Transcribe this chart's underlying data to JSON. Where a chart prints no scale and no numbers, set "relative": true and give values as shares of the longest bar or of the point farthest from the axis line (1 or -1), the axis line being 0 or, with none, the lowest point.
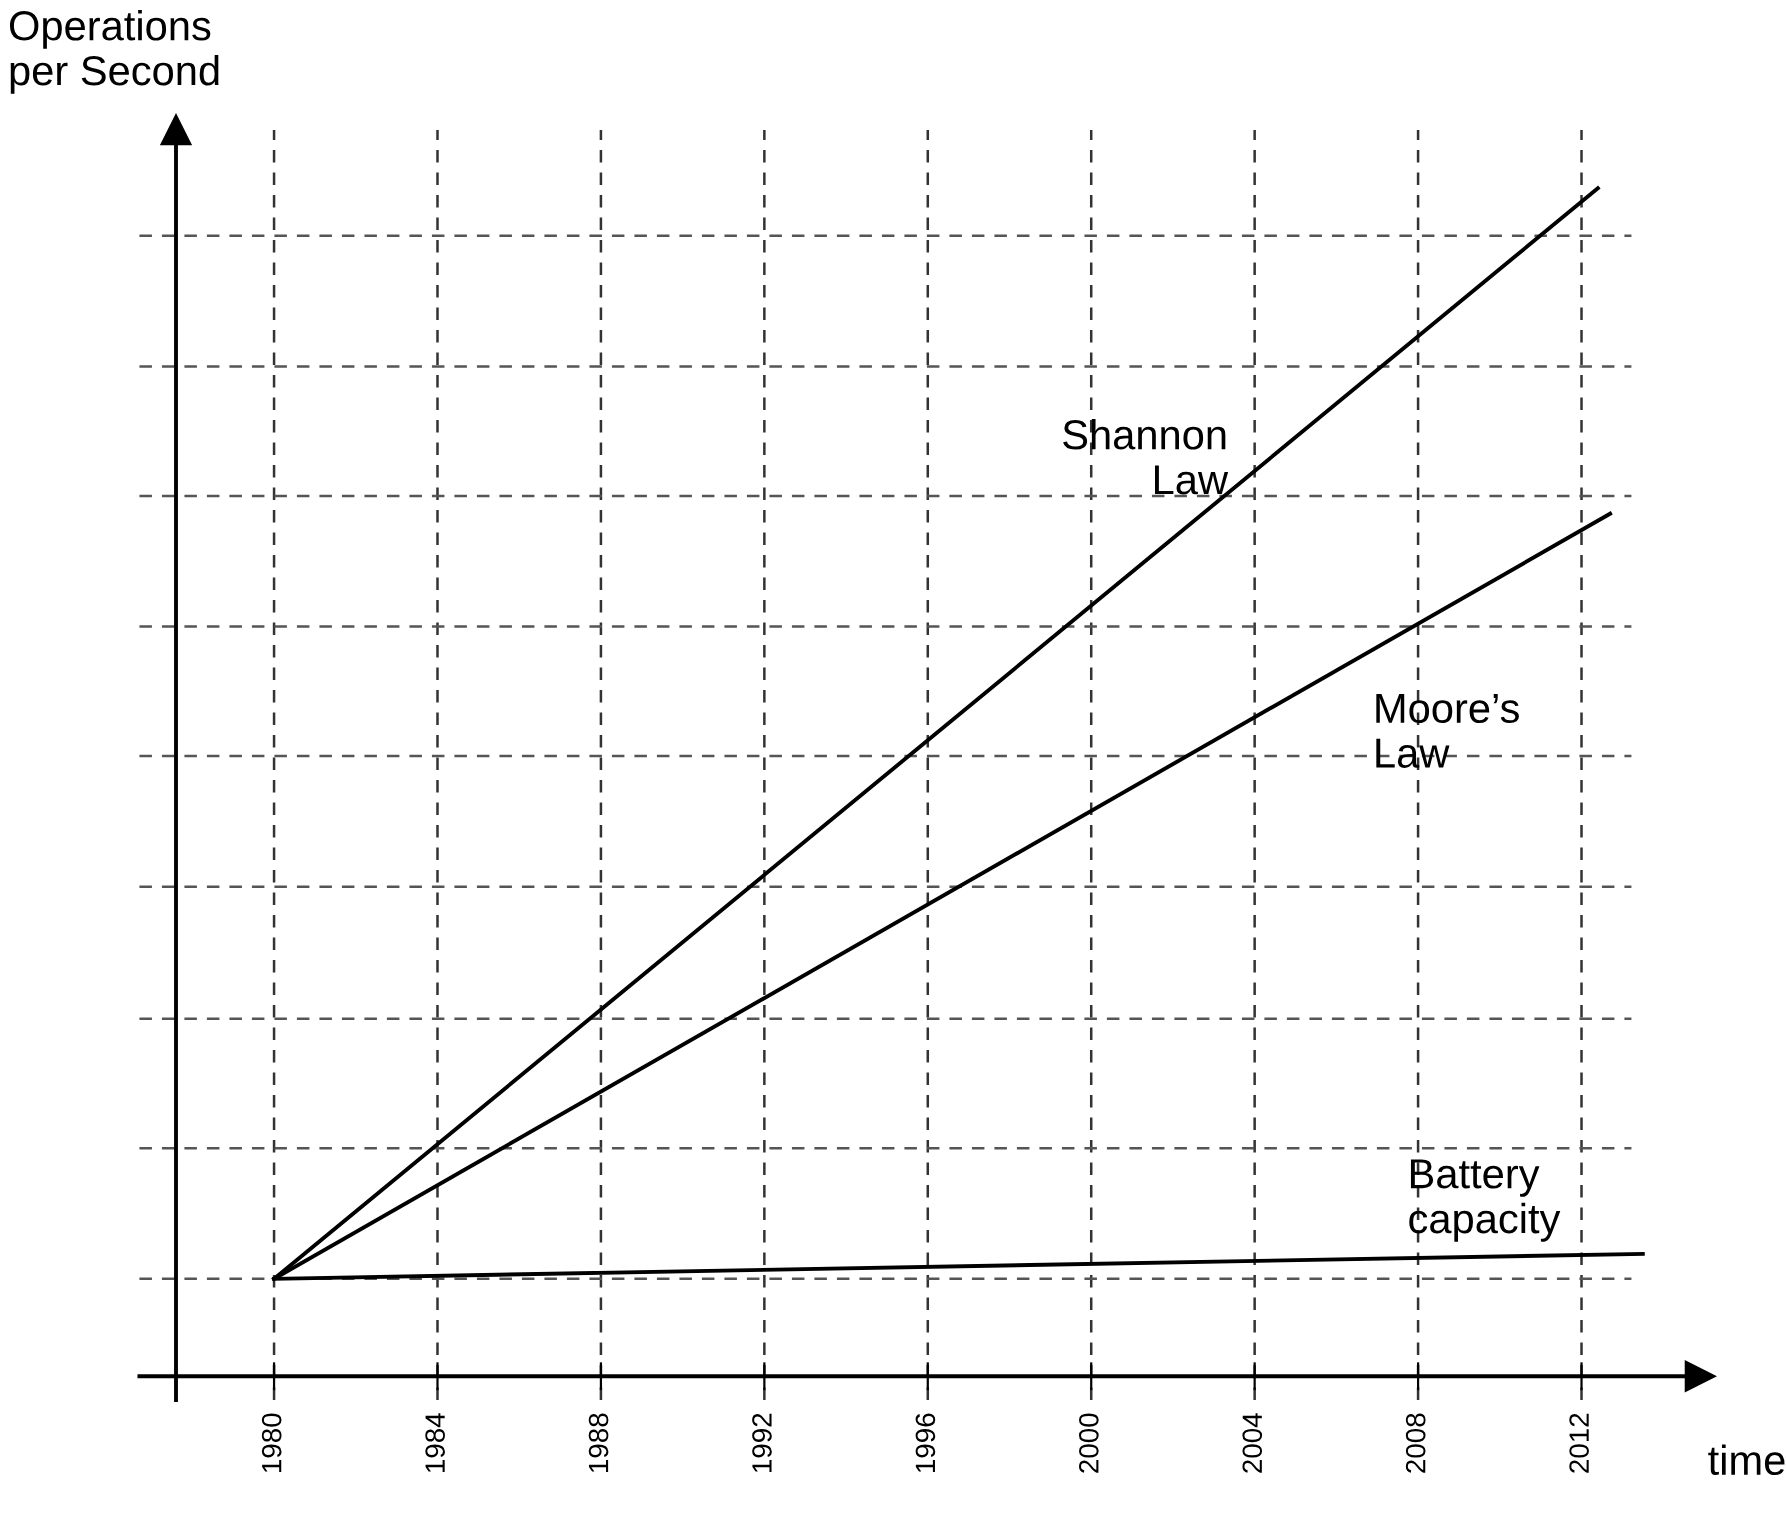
{
  "chart_data": {
    "type": "line",
    "relative": true,
    "xlabel": "time",
    "ylabel": "Operations\nper Second",
    "xlim": [
      1977.6,
      2014.9
    ],
    "xticks": [
      1980,
      1984,
      1988,
      1992,
      1996,
      2000,
      2004,
      2008,
      2012
    ],
    "grid": "x",
    "marker": "none",
    "line_style": "solid",
    "series": [
      {
        "name": "Shannon\nLaw",
        "color": "#000000",
        "x": [
          1980,
          2012.4
        ],
        "values": [
          0.082,
          1
        ]
      },
      {
        "name": "Moore’s\nLaw",
        "color": "#000000",
        "x": [
          1980,
          2012.7
        ],
        "values": [
          0.082,
          0.726
        ]
      },
      {
        "name": "Battery\ncapacity",
        "color": "#000000",
        "x": [
          1980,
          2013.5
        ],
        "values": [
          0.082,
          0.103
        ]
      }
    ],
    "ref_lines": [
      {
        "axis": "y",
        "value": 0.082,
        "color": "#555555",
        "line_style": "dashed"
      },
      {
        "axis": "y",
        "value": 0.192,
        "color": "#555555",
        "line_style": "dashed"
      },
      {
        "axis": "y",
        "value": 0.301,
        "color": "#555555",
        "line_style": "dashed"
      },
      {
        "axis": "y",
        "value": 0.412,
        "color": "#555555",
        "line_style": "dashed"
      },
      {
        "axis": "y",
        "value": 0.522,
        "color": "#555555",
        "line_style": "dashed"
      },
      {
        "axis": "y",
        "value": 0.631,
        "color": "#555555",
        "line_style": "dashed"
      },
      {
        "axis": "y",
        "value": 0.741,
        "color": "#555555",
        "line_style": "dashed"
      },
      {
        "axis": "y",
        "value": 0.85,
        "color": "#555555",
        "line_style": "dashed"
      },
      {
        "axis": "y",
        "value": 0.96,
        "color": "#555555",
        "line_style": "dashed"
      }
    ]
  }
}
